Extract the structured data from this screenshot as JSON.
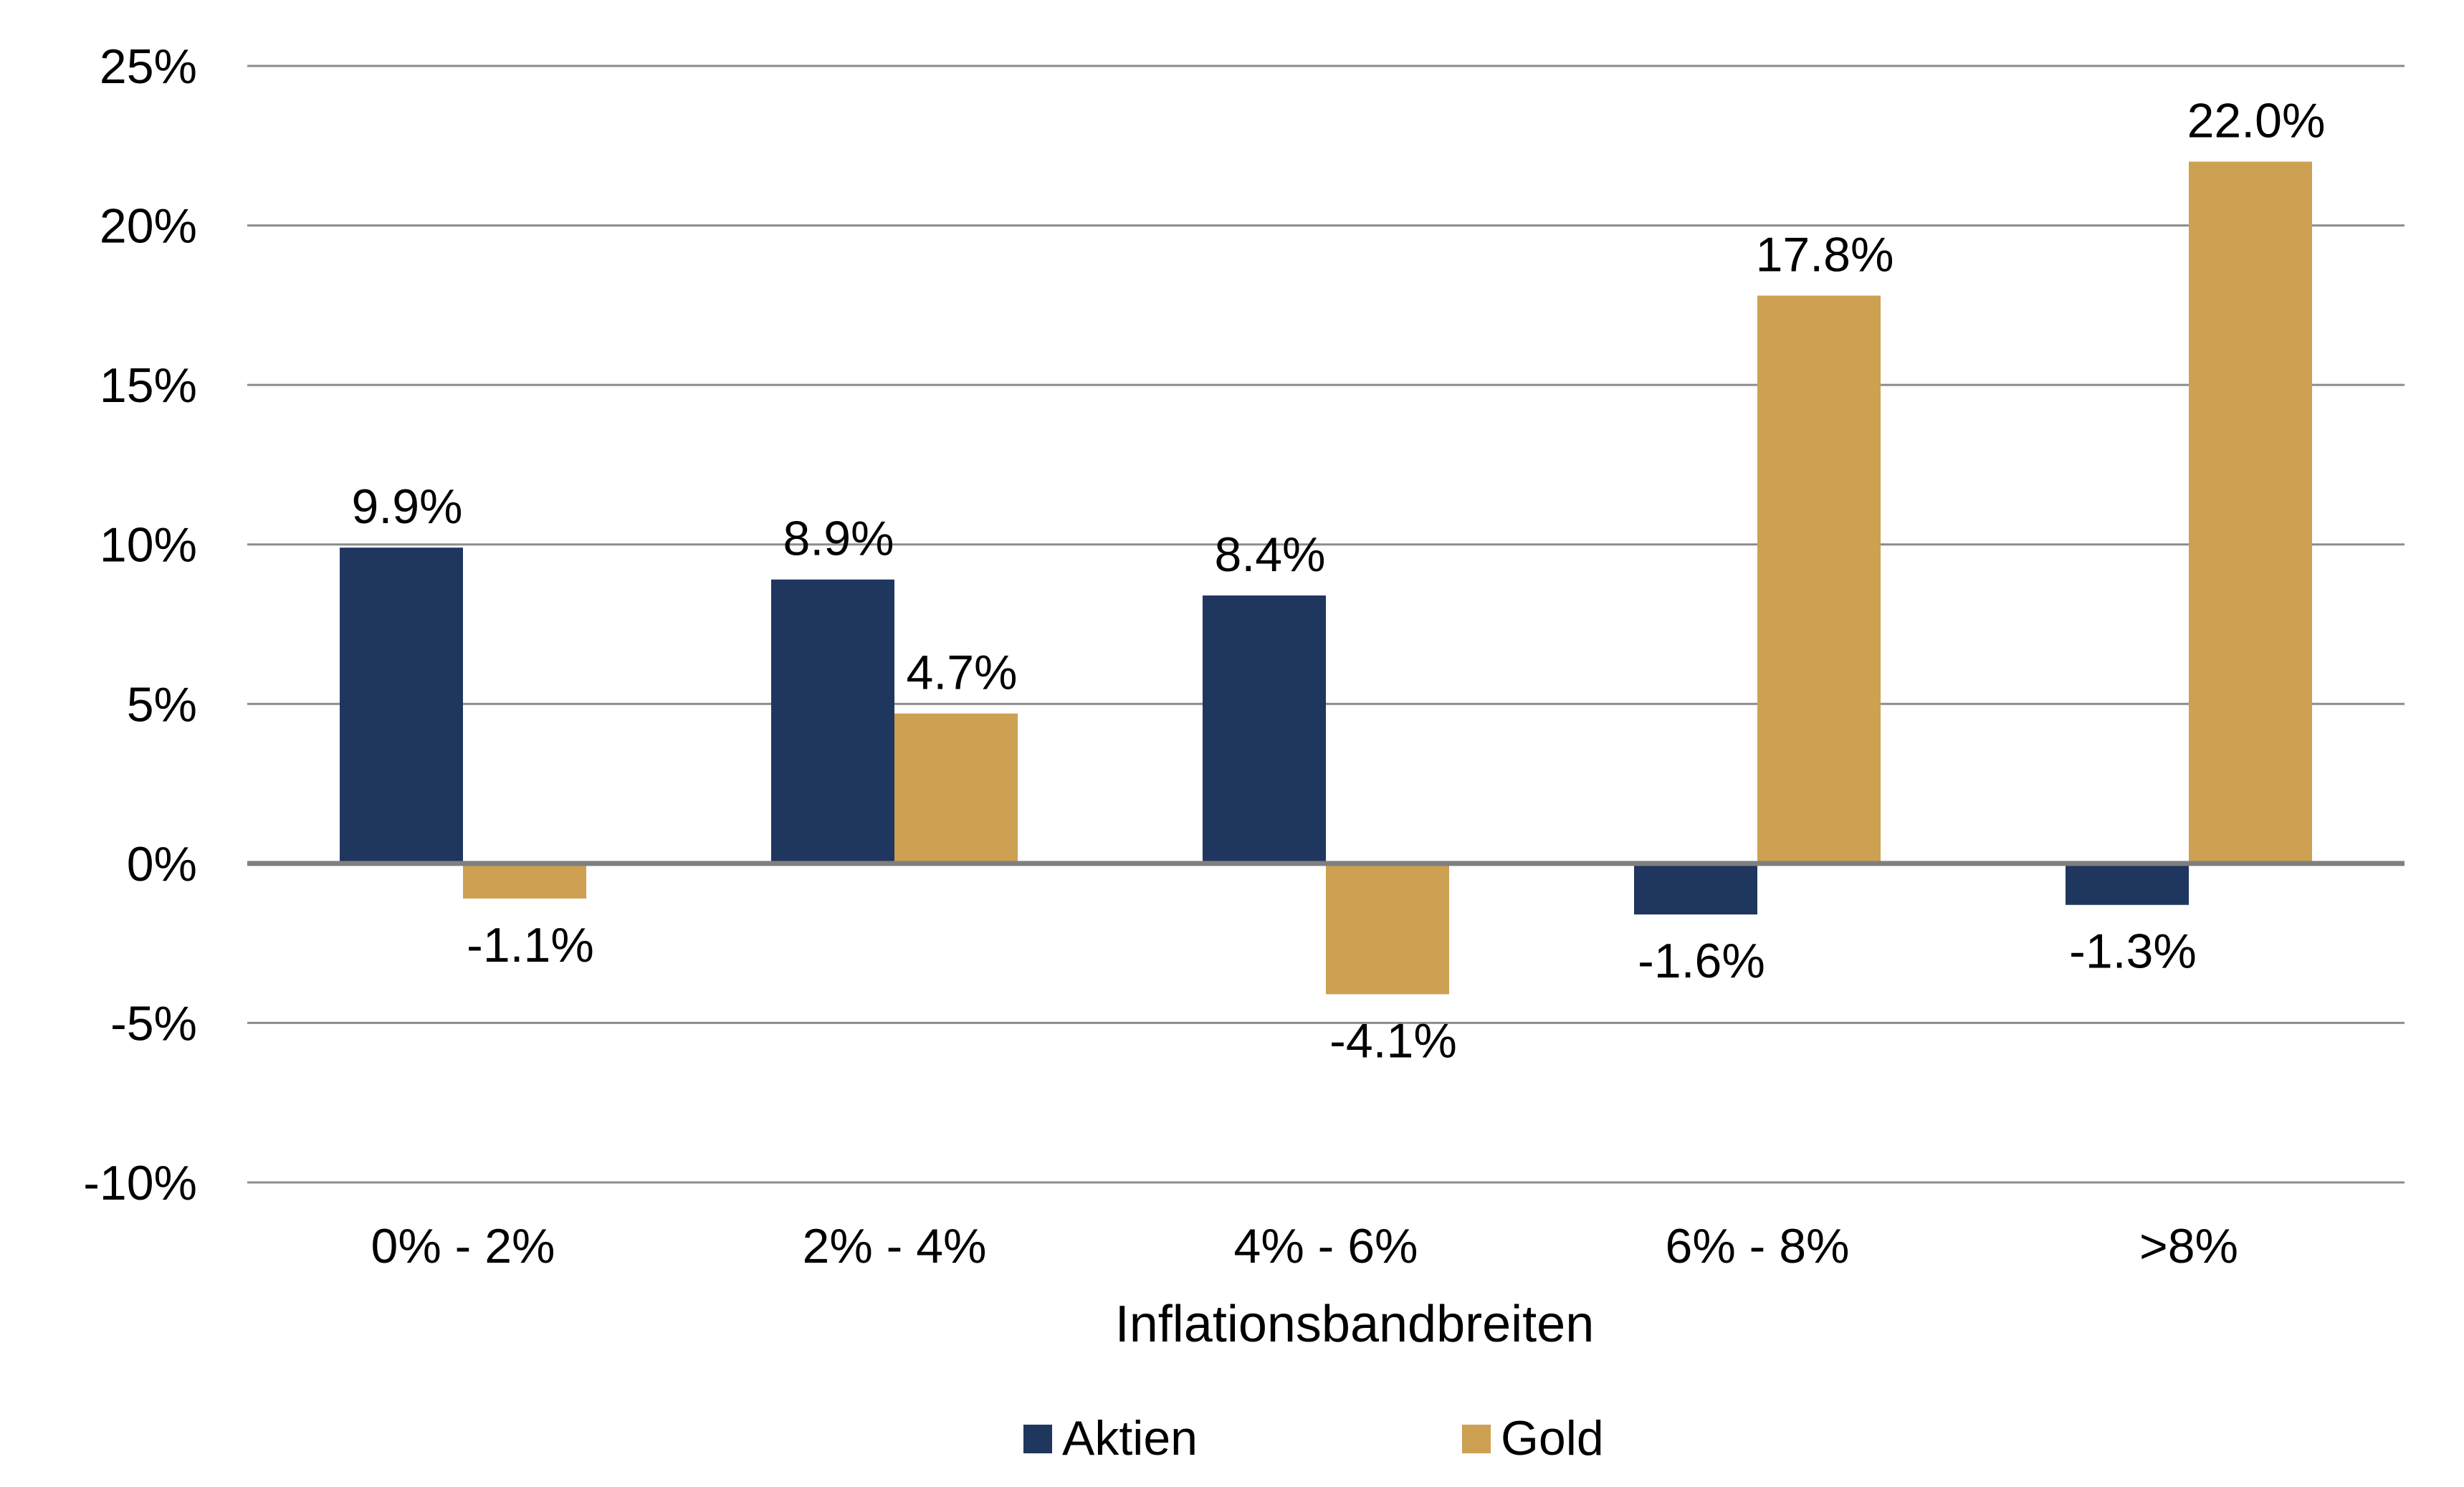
{
  "chart_data": {
    "type": "bar",
    "title": "",
    "xlabel": "Inflationsbandbreiten",
    "ylabel": "",
    "categories": [
      "0% - 2%",
      "2% - 4%",
      "4% - 6%",
      "6% - 8%",
      ">8%"
    ],
    "series": [
      {
        "name": "Aktien",
        "color": "#1f365e",
        "values": [
          9.9,
          8.9,
          8.4,
          -1.6,
          -1.3
        ],
        "labels": [
          "9.9%",
          "8.9%",
          "8.4%",
          "-1.6%",
          "-1.3%"
        ]
      },
      {
        "name": "Gold",
        "color": "#cda052",
        "values": [
          -1.1,
          4.7,
          -4.1,
          17.8,
          22.0
        ],
        "labels": [
          "-1.1%",
          "4.7%",
          "-4.1%",
          "17.8%",
          "22.0%"
        ]
      }
    ],
    "ylim": [
      -10,
      25
    ],
    "yticks": [
      25,
      20,
      15,
      10,
      5,
      0,
      -5,
      -10
    ],
    "ytick_labels": [
      "25%",
      "20%",
      "15%",
      "10%",
      "5%",
      "0%",
      "-5%",
      "-10%"
    ],
    "grid": true,
    "legend_position": "bottom"
  }
}
